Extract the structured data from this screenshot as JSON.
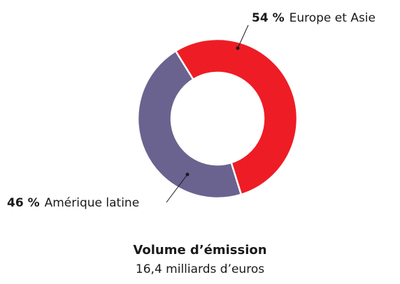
{
  "chart_data": {
    "type": "pie",
    "title": "Volume d’émission",
    "subtitle": "16,4 milliards d’euros",
    "categories": [
      "Europe et Asie",
      "Amérique latine"
    ],
    "values": [
      54,
      46
    ],
    "value_labels": [
      "54 %",
      "46 %"
    ],
    "colors": [
      "#ee1c25",
      "#6a638f"
    ],
    "donut": true
  }
}
